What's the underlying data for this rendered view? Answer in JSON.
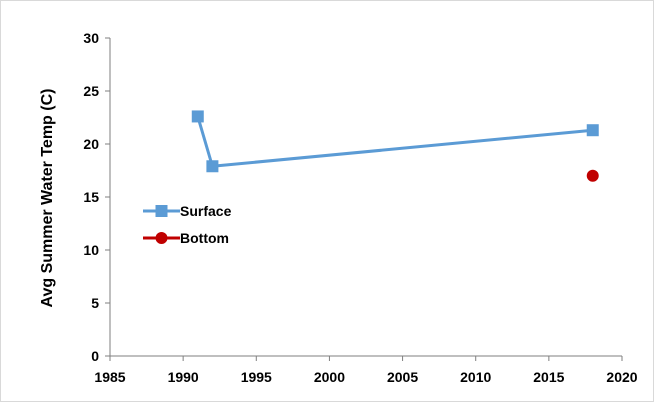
{
  "chart_data": {
    "type": "scatter",
    "title": "",
    "xlabel": "",
    "ylabel": "Avg Summer Water Temp (C)",
    "xlim": [
      1985,
      2020
    ],
    "ylim": [
      0,
      30
    ],
    "xticks": [
      1985,
      1990,
      1995,
      2000,
      2005,
      2010,
      2015,
      2020
    ],
    "yticks": [
      0,
      5,
      10,
      15,
      20,
      25,
      30
    ],
    "grid": false,
    "legend_position": "left-middle",
    "series": [
      {
        "name": "Surface",
        "color": "#5B9BD5",
        "marker": "square",
        "line": true,
        "points": [
          {
            "x": 1991,
            "y": 22.6
          },
          {
            "x": 1992,
            "y": 17.9
          },
          {
            "x": 2018,
            "y": 21.3
          }
        ]
      },
      {
        "name": "Bottom",
        "color": "#C00000",
        "marker": "circle",
        "line": false,
        "points": [
          {
            "x": 2018,
            "y": 17.0
          }
        ]
      }
    ]
  }
}
